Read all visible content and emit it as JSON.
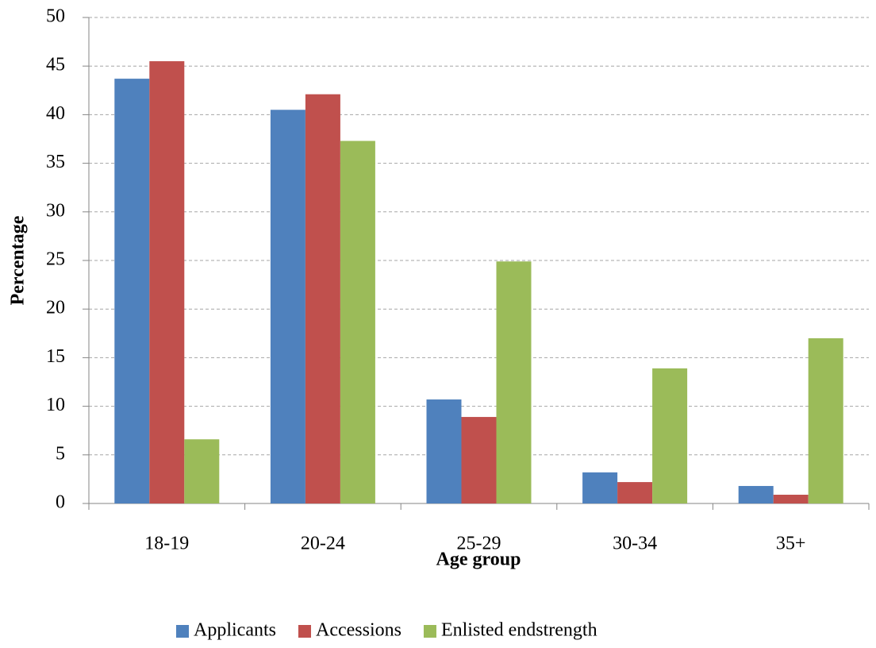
{
  "chart_data": {
    "type": "bar",
    "x_label": "Age group",
    "y_label": "Percentage",
    "categories": [
      "18-19",
      "20-24",
      "25-29",
      "30-34",
      "35+"
    ],
    "series": [
      {
        "name": "Applicants",
        "color": "#4f81bd",
        "values": [
          43.7,
          40.5,
          10.7,
          3.2,
          1.8
        ]
      },
      {
        "name": "Accessions",
        "color": "#c0504d",
        "values": [
          45.5,
          42.1,
          8.9,
          2.2,
          0.9
        ]
      },
      {
        "name": "Enlisted endstrength",
        "color": "#9bbb59",
        "values": [
          6.6,
          37.3,
          24.9,
          13.9,
          17.0
        ]
      }
    ],
    "ylim": [
      0,
      50
    ],
    "yticks": [
      0,
      5,
      10,
      15,
      20,
      25,
      30,
      35,
      40,
      45,
      50
    ],
    "grid": true,
    "legend": "bottom"
  }
}
